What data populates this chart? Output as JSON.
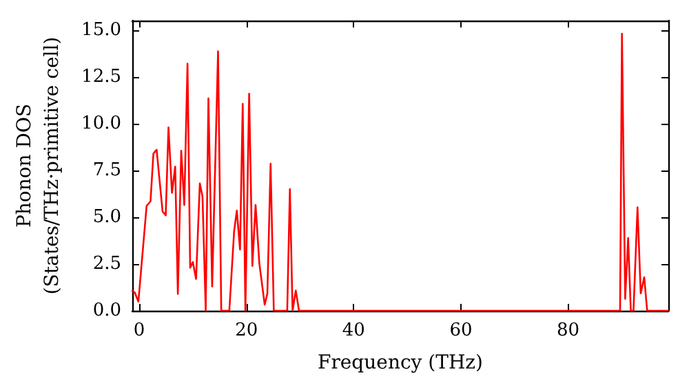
{
  "chart_data": {
    "type": "line",
    "xlabel": "Frequency (THz)",
    "ylabel": "Phonon DOS\n(States/THz·primitive cell)",
    "x": [
      -1.28,
      -0.85,
      -0.16,
      1.37,
      2.1,
      2.64,
      3.24,
      4.35,
      4.94,
      5.45,
      6.1,
      6.7,
      7.2,
      7.83,
      8.4,
      9.0,
      9.5,
      10.0,
      10.6,
      11.3,
      11.8,
      12.4,
      12.9,
      13.6,
      14.7,
      15.3,
      16.8,
      17.7,
      18.2,
      18.8,
      19.3,
      19.8,
      20.5,
      21.1,
      21.7,
      22.4,
      23.4,
      23.9,
      24.5,
      25.1,
      27.6,
      28.1,
      28.6,
      29.2,
      29.8,
      89.7,
      90.05,
      90.65,
      91.2,
      91.7,
      92.2,
      92.95,
      93.55,
      94.2,
      94.75,
      98.7
    ],
    "series": [
      {
        "color": "#ff0000",
        "values": [
          1.06,
          0.98,
          0.49,
          5.6,
          5.85,
          8.4,
          8.6,
          5.3,
          5.1,
          9.8,
          6.3,
          7.7,
          0.9,
          8.55,
          5.65,
          13.2,
          2.3,
          2.6,
          1.7,
          6.8,
          6.1,
          0,
          11.35,
          1.3,
          13.86,
          0,
          0,
          4.25,
          5.35,
          3.27,
          11.05,
          0,
          11.6,
          2.4,
          5.65,
          2.53,
          0.32,
          0.93,
          7.86,
          0,
          0,
          6.5,
          0,
          1.08,
          0,
          0,
          14.8,
          0.64,
          3.88,
          0,
          0,
          5.53,
          0.93,
          1.79,
          0,
          0
        ]
      }
    ],
    "xlim": [
      -1.3,
      98.7
    ],
    "xticks": [
      0,
      20,
      40,
      60,
      80
    ],
    "ylim": [
      0,
      15.5
    ],
    "yticks": [
      {
        "value": 0,
        "label": "0.0"
      },
      {
        "value": 2.5,
        "label": "2.5"
      },
      {
        "value": 5,
        "label": "5.0"
      },
      {
        "value": 7.5,
        "label": "7.5"
      },
      {
        "value": 10,
        "label": "10.0"
      },
      {
        "value": 12.5,
        "label": "12.5"
      },
      {
        "value": 15,
        "label": "15.0"
      }
    ],
    "grid": false,
    "marker": "none",
    "line_style": "solid"
  }
}
